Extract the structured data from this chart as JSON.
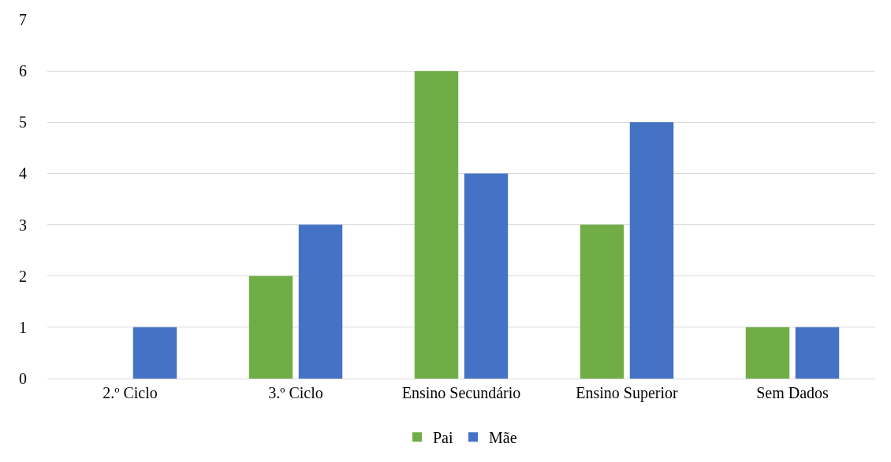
{
  "chart_data": {
    "type": "bar",
    "categories": [
      "2.º Ciclo",
      "3.º Ciclo",
      "Ensino Secundário",
      "Ensino Superior",
      "Sem Dados"
    ],
    "series": [
      {
        "name": "Pai",
        "color": "#70ad47",
        "values": [
          0,
          2,
          6,
          3,
          1
        ]
      },
      {
        "name": "Mãe",
        "color": "#4472c4",
        "values": [
          1,
          3,
          4,
          5,
          1
        ]
      }
    ],
    "ylim": [
      0,
      7
    ],
    "yticks": [
      0,
      1,
      2,
      3,
      4,
      5,
      6,
      7
    ],
    "grid": "y",
    "legend": "bottom"
  }
}
